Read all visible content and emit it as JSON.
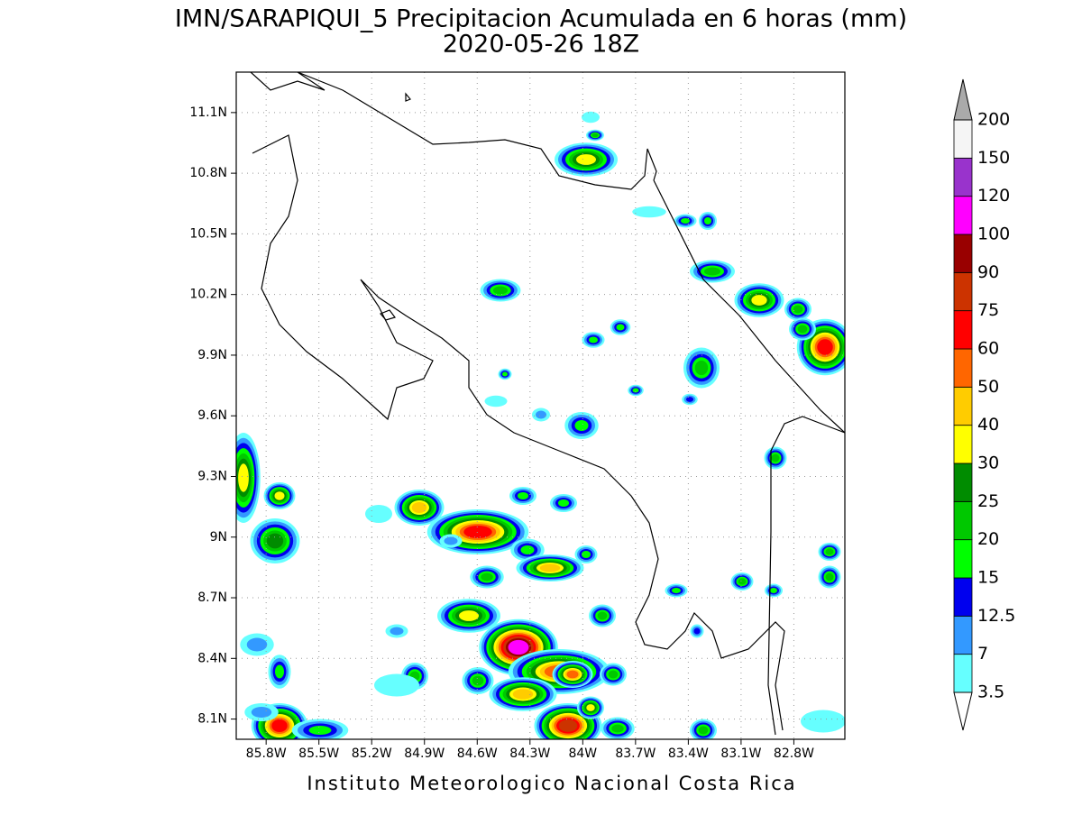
{
  "title": "IMN/SARAPIQUI_5 Precipitacion Acumulada en 6 horas (mm)",
  "subtitle": "2020-05-26 18Z",
  "footer": "Instituto Meteorologico Nacional Costa Rica",
  "map": {
    "xlim": [
      -85.97,
      -82.51
    ],
    "ylim": [
      8.0,
      11.3
    ],
    "xticks": [
      {
        "value": -85.8,
        "label": "85.8W"
      },
      {
        "value": -85.5,
        "label": "85.5W"
      },
      {
        "value": -85.2,
        "label": "85.2W"
      },
      {
        "value": -84.9,
        "label": "84.9W"
      },
      {
        "value": -84.6,
        "label": "84.6W"
      },
      {
        "value": -84.3,
        "label": "84.3W"
      },
      {
        "value": -84.0,
        "label": "84W"
      },
      {
        "value": -83.7,
        "label": "83.7W"
      },
      {
        "value": -83.4,
        "label": "83.4W"
      },
      {
        "value": -83.1,
        "label": "83.1W"
      },
      {
        "value": -82.8,
        "label": "82.8W"
      }
    ],
    "yticks": [
      {
        "value": 11.1,
        "label": "11.1N"
      },
      {
        "value": 10.8,
        "label": "10.8N"
      },
      {
        "value": 10.5,
        "label": "10.5N"
      },
      {
        "value": 10.2,
        "label": "10.2N"
      },
      {
        "value": 9.9,
        "label": "9.9N"
      },
      {
        "value": 9.6,
        "label": "9.6N"
      },
      {
        "value": 9.3,
        "label": "9.3N"
      },
      {
        "value": 9.0,
        "label": "9N"
      },
      {
        "value": 8.7,
        "label": "8.7N"
      },
      {
        "value": 8.4,
        "label": "8.4N"
      },
      {
        "value": 8.1,
        "label": "8.1N"
      }
    ]
  },
  "colorbar": {
    "levels": [
      3.5,
      7,
      12.5,
      15,
      20,
      25,
      30,
      40,
      50,
      60,
      75,
      90,
      100,
      120,
      150,
      200
    ],
    "colors": [
      "#66ffff",
      "#3399ff",
      "#0000ee",
      "#00ff00",
      "#00c800",
      "#008c00",
      "#ffff00",
      "#ffcc00",
      "#ff6600",
      "#ff0000",
      "#cc3300",
      "#990000",
      "#ff00ff",
      "#9933cc",
      "#f5f5f5"
    ]
  }
}
